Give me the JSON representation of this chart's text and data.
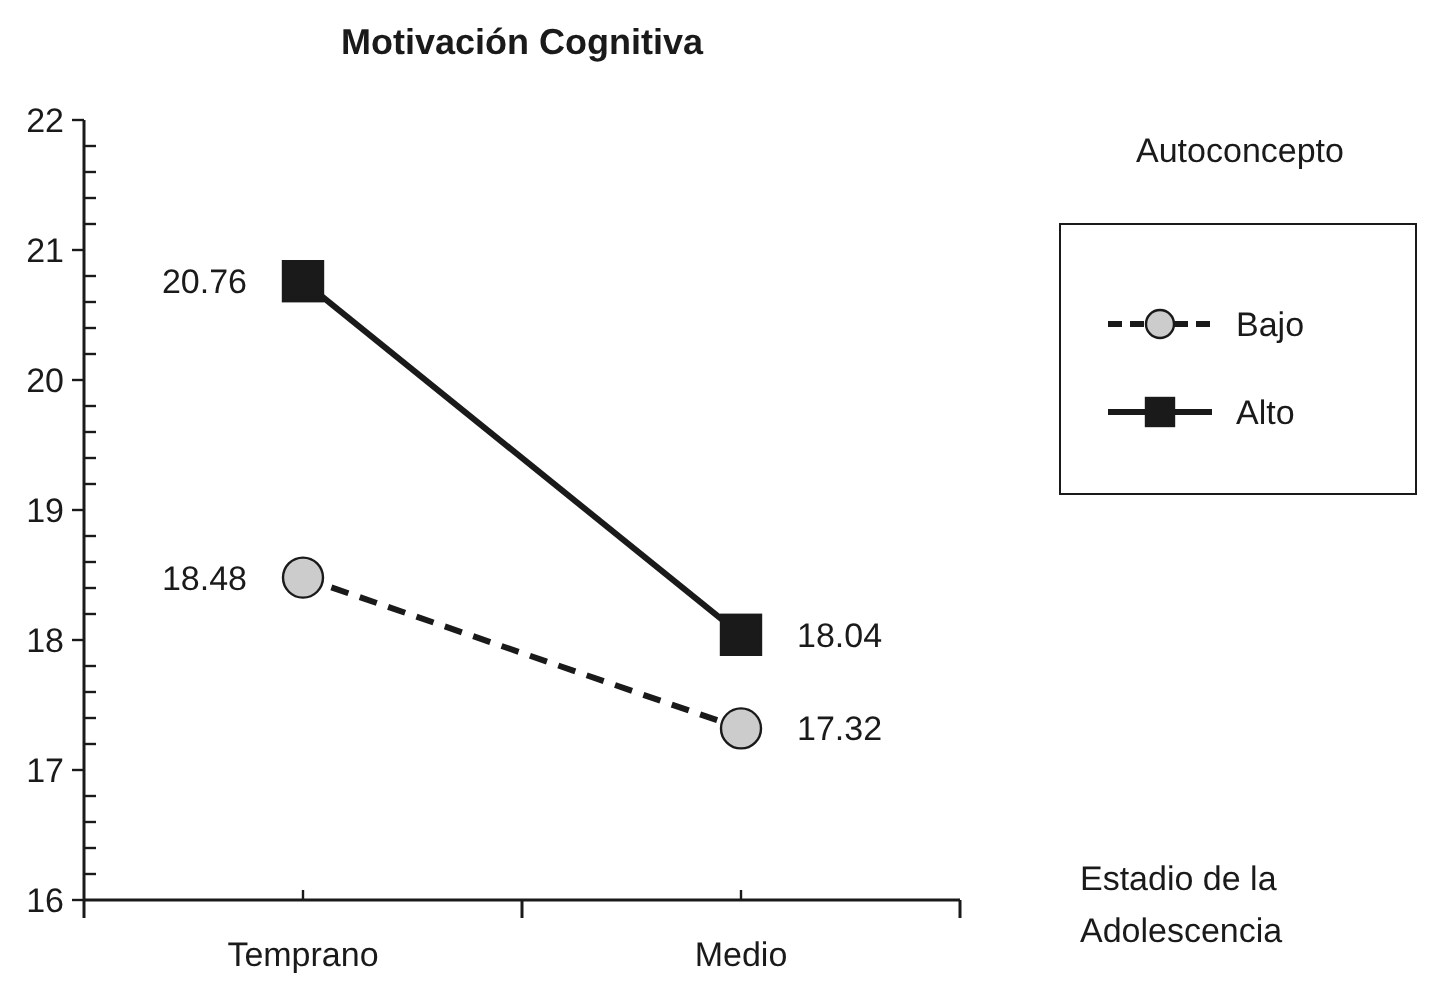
{
  "chart_data": {
    "type": "line",
    "title": "Motivación Cognitiva",
    "xlabel": "Estadio de la Adolescencia",
    "legend_title": "Autoconcepto",
    "categories": [
      "Temprano",
      "Medio"
    ],
    "series": [
      {
        "name": "Bajo",
        "color": "#cccccc",
        "marker": "circle",
        "line_style": "dashed",
        "values": [
          18.48,
          17.32
        ]
      },
      {
        "name": "Alto",
        "color": "#1a1a1a",
        "marker": "square",
        "line_style": "solid",
        "values": [
          20.76,
          18.04
        ]
      }
    ],
    "ylim": [
      16,
      22
    ],
    "yticks": [
      16,
      {
        "value": 16.2,
        "label": null
      },
      {
        "value": 16.4,
        "label": null
      },
      {
        "value": 16.6,
        "label": null
      },
      {
        "value": 16.8,
        "label": null
      },
      17,
      {
        "value": 17.2,
        "label": null
      },
      {
        "value": 17.4,
        "label": null
      },
      {
        "value": 17.6,
        "label": null
      },
      {
        "value": 17.8,
        "label": null
      },
      18,
      {
        "value": 18.2,
        "label": null
      },
      {
        "value": 18.4,
        "label": null
      },
      {
        "value": 18.6,
        "label": null
      },
      {
        "value": 18.8,
        "label": null
      },
      19,
      {
        "value": 19.2,
        "label": null
      },
      {
        "value": 19.4,
        "label": null
      },
      {
        "value": 19.6,
        "label": null
      },
      {
        "value": 19.8,
        "label": null
      },
      20,
      {
        "value": 20.2,
        "label": null
      },
      {
        "value": 20.4,
        "label": null
      },
      {
        "value": 20.6,
        "label": null
      },
      {
        "value": 20.8,
        "label": null
      },
      21,
      {
        "value": 21.2,
        "label": null
      },
      {
        "value": 21.4,
        "label": null
      },
      {
        "value": 21.6,
        "label": null
      },
      {
        "value": 21.8,
        "label": null
      },
      22
    ],
    "data_labels": true,
    "legend": "right",
    "grid": false
  }
}
